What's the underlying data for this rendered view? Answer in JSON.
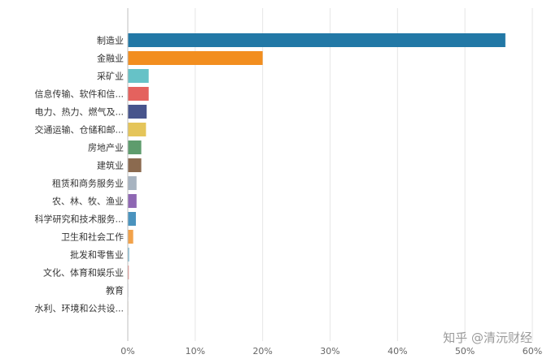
{
  "chart_data": {
    "type": "bar",
    "orientation": "horizontal",
    "title": "",
    "xlabel": "",
    "ylabel": "",
    "xlim": [
      0,
      60
    ],
    "x_ticks": [
      "0%",
      "10%",
      "20%",
      "30%",
      "40%",
      "50%",
      "60%"
    ],
    "grid": true,
    "categories": [
      "制造业",
      "金融业",
      "采矿业",
      "信息传输、软件和信...",
      "电力、热力、燃气及...",
      "交通运输、仓储和邮...",
      "房地产业",
      "建筑业",
      "租赁和商务服务业",
      "农、林、牧、渔业",
      "科学研究和技术服务...",
      "卫生和社会工作",
      "批发和零售业",
      "文化、体育和娱乐业",
      "教育",
      "水利、环境和公共设..."
    ],
    "values": [
      56.0,
      20.0,
      3.1,
      3.1,
      2.8,
      2.7,
      2.0,
      2.0,
      1.3,
      1.3,
      1.2,
      0.8,
      0.2,
      0.15,
      0.05,
      0.05
    ],
    "colors": [
      "#2278a6",
      "#f28e1f",
      "#66c2c7",
      "#e4625e",
      "#47548c",
      "#e5c55a",
      "#5e9c6d",
      "#8b6a4f",
      "#a7b3c0",
      "#8e67b3",
      "#4a93be",
      "#f2a24a",
      "#7ab8d1",
      "#e88a86",
      "#9aa3c8",
      "#c9b98a"
    ]
  },
  "watermark": "知乎 @清沅财经"
}
